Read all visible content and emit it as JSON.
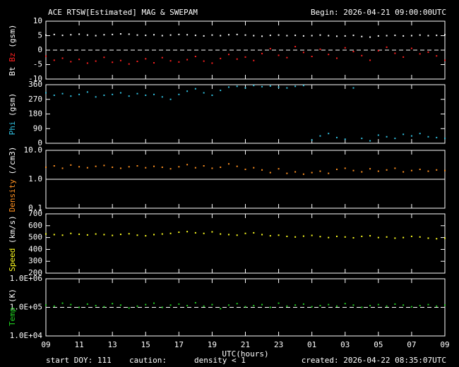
{
  "title": "ACE RTSW[Estimated] MAG & SWEPAM",
  "begin": "Begin: 2026-04-21 09:00:00UTC",
  "footer": {
    "start": "start DOY: 111",
    "caution": "caution:",
    "note": "density < 1",
    "note_color": "#ff9020",
    "created": "created: 2026-04-22 08:35:07UTC"
  },
  "chart_data": [
    {
      "type": "scatter",
      "ylabel": "(gsm)",
      "xlim": [
        0,
        24
      ],
      "ylim": [
        -10,
        10
      ],
      "yticks": [
        -10,
        -5,
        0,
        5,
        10
      ],
      "hline": 0,
      "hline_style": "dashed",
      "x": [
        0,
        0.5,
        1,
        1.5,
        2,
        2.5,
        3,
        3.5,
        4,
        4.5,
        5,
        5.5,
        6,
        6.5,
        7,
        7.5,
        8,
        8.5,
        9,
        9.5,
        10,
        10.5,
        11,
        11.5,
        12,
        12.5,
        13,
        13.5,
        14,
        14.5,
        15,
        15.5,
        16,
        16.5,
        17,
        17.5,
        18,
        18.5,
        19,
        19.5,
        20,
        20.5,
        21,
        21.5,
        22,
        22.5,
        23,
        23.5,
        24
      ],
      "series": [
        {
          "name": "Bt",
          "color": "#ffffff",
          "values": [
            5.2,
            5.4,
            5.1,
            5.3,
            5.5,
            5.2,
            5.0,
            5.3,
            5.4,
            5.6,
            5.5,
            5.2,
            5.1,
            5.3,
            5.0,
            5.2,
            5.4,
            5.3,
            5.1,
            4.9,
            5.2,
            5.0,
            5.3,
            5.4,
            5.2,
            5.0,
            4.8,
            5.1,
            5.2,
            5.0,
            5.1,
            4.9,
            5.0,
            5.2,
            5.0,
            4.8,
            4.9,
            5.1,
            4.7,
            4.5,
            4.9,
            5.0,
            5.1,
            4.9,
            5.0,
            5.2,
            5.0,
            5.1,
            5.3
          ]
        },
        {
          "name": "Bz",
          "color": "#ff2020",
          "values": [
            -2.1,
            -3.5,
            -2.8,
            -4.0,
            -3.2,
            -4.5,
            -3.8,
            -2.5,
            -4.2,
            -3.6,
            -4.8,
            -3.9,
            -3.0,
            -4.4,
            -2.6,
            -3.7,
            -4.1,
            -3.3,
            -2.2,
            -3.8,
            -4.5,
            -2.9,
            -1.5,
            -3.1,
            -2.4,
            -3.6,
            -1.2,
            0.5,
            -1.8,
            -2.6,
            1.2,
            -0.8,
            -2.2,
            0.3,
            -1.5,
            -2.8,
            0.8,
            -0.5,
            -1.9,
            -3.5,
            -0.2,
            1.0,
            -1.1,
            -2.4,
            0.6,
            -1.3,
            -0.7,
            -2.0,
            -3.5
          ]
        }
      ]
    },
    {
      "type": "scatter",
      "ylabel": "(gsm)",
      "xlim": [
        0,
        24
      ],
      "ylim": [
        0,
        360
      ],
      "yticks": [
        0,
        90,
        180,
        270,
        360
      ],
      "x": [
        0,
        0.5,
        1,
        1.5,
        2,
        2.5,
        3,
        3.5,
        4,
        4.5,
        5,
        5.5,
        6,
        6.5,
        7,
        7.5,
        8,
        8.5,
        9,
        9.5,
        10,
        10.5,
        11,
        11.5,
        12,
        12.5,
        13,
        13.5,
        14,
        14.5,
        15,
        15.5,
        16,
        16.5,
        17,
        17.5,
        18,
        18.5,
        19,
        19.5,
        20,
        20.5,
        21,
        21.5,
        22,
        22.5,
        23,
        23.5,
        24
      ],
      "series": [
        {
          "name": "Phi",
          "color": "#30c0e0",
          "values": [
            310,
            295,
            305,
            290,
            300,
            315,
            285,
            295,
            300,
            310,
            290,
            305,
            295,
            300,
            285,
            270,
            300,
            320,
            335,
            310,
            295,
            325,
            345,
            350,
            340,
            355,
            348,
            352,
            345,
            340,
            350,
            355,
            20,
            45,
            60,
            35,
            25,
            340,
            30,
            15,
            50,
            40,
            30,
            55,
            45,
            60,
            40,
            35,
            30
          ]
        }
      ]
    },
    {
      "type": "scatter",
      "ylabel": "(/cm3)",
      "log": true,
      "xlim": [
        0,
        24
      ],
      "ylim": [
        0.1,
        10
      ],
      "yticks": [
        0.1,
        {
          "value": 1,
          "label": "1.0"
        },
        {
          "value": 10,
          "label": "10.0"
        }
      ],
      "hline": 1,
      "hline_style": "solid",
      "x": [
        0,
        0.5,
        1,
        1.5,
        2,
        2.5,
        3,
        3.5,
        4,
        4.5,
        5,
        5.5,
        6,
        6.5,
        7,
        7.5,
        8,
        8.5,
        9,
        9.5,
        10,
        10.5,
        11,
        11.5,
        12,
        12.5,
        13,
        13.5,
        14,
        14.5,
        15,
        15.5,
        16,
        16.5,
        17,
        17.5,
        18,
        18.5,
        19,
        19.5,
        20,
        20.5,
        21,
        21.5,
        22,
        22.5,
        23,
        23.5,
        24
      ],
      "series": [
        {
          "name": "Density",
          "color": "#ff9020",
          "values": [
            2.6,
            2.9,
            2.4,
            3.1,
            2.7,
            2.5,
            2.8,
            3.0,
            2.6,
            2.4,
            2.7,
            2.9,
            2.5,
            2.8,
            2.6,
            2.3,
            2.7,
            3.2,
            2.5,
            2.9,
            2.4,
            2.6,
            3.4,
            2.8,
            2.2,
            2.5,
            2.1,
            1.7,
            2.3,
            1.6,
            1.8,
            1.5,
            1.7,
            1.9,
            1.6,
            2.2,
            2.4,
            2.0,
            1.8,
            2.3,
            1.9,
            2.1,
            2.4,
            1.8,
            2.0,
            2.2,
            1.9,
            2.1,
            2.0
          ]
        }
      ]
    },
    {
      "type": "scatter",
      "ylabel": "(km/s)",
      "xlim": [
        0,
        24
      ],
      "ylim": [
        200,
        700
      ],
      "yticks": [
        200,
        300,
        400,
        500,
        600,
        700
      ],
      "x": [
        0,
        0.5,
        1,
        1.5,
        2,
        2.5,
        3,
        3.5,
        4,
        4.5,
        5,
        5.5,
        6,
        6.5,
        7,
        7.5,
        8,
        8.5,
        9,
        9.5,
        10,
        10.5,
        11,
        11.5,
        12,
        12.5,
        13,
        13.5,
        14,
        14.5,
        15,
        15.5,
        16,
        16.5,
        17,
        17.5,
        18,
        18.5,
        19,
        19.5,
        20,
        20.5,
        21,
        21.5,
        22,
        22.5,
        23,
        23.5,
        24
      ],
      "series": [
        {
          "name": "Speed",
          "color": "#ffff20",
          "values": [
            530,
            525,
            520,
            535,
            528,
            522,
            530,
            525,
            518,
            527,
            532,
            520,
            515,
            525,
            530,
            535,
            545,
            550,
            540,
            535,
            548,
            530,
            525,
            520,
            535,
            540,
            525,
            515,
            520,
            510,
            505,
            512,
            518,
            508,
            500,
            510,
            505,
            498,
            510,
            515,
            500,
            505,
            495,
            500,
            510,
            505,
            495,
            490,
            495
          ]
        }
      ]
    },
    {
      "type": "scatter",
      "ylabel": "(K)",
      "log": true,
      "xlim": [
        0,
        24
      ],
      "ylim": [
        10000,
        1000000
      ],
      "yticks": [
        {
          "value": 10000,
          "label": "1.0E+04"
        },
        {
          "value": 100000,
          "label": "1.0E+05"
        },
        {
          "value": 1000000,
          "label": "1.0E+06"
        }
      ],
      "hline": 100000,
      "hline_style": "dashed",
      "xlabel": "UTC(hours)",
      "xticks": [
        {
          "value": 0,
          "label": "09"
        },
        {
          "value": 2,
          "label": "11"
        },
        {
          "value": 4,
          "label": "13"
        },
        {
          "value": 6,
          "label": "15"
        },
        {
          "value": 8,
          "label": "17"
        },
        {
          "value": 10,
          "label": "19"
        },
        {
          "value": 12,
          "label": "21"
        },
        {
          "value": 14,
          "label": "23"
        },
        {
          "value": 16,
          "label": "01"
        },
        {
          "value": 18,
          "label": "03"
        },
        {
          "value": 20,
          "label": "05"
        },
        {
          "value": 22,
          "label": "07"
        },
        {
          "value": 24,
          "label": "09"
        }
      ],
      "x": [
        0,
        0.5,
        1,
        1.5,
        2,
        2.5,
        3,
        3.5,
        4,
        4.5,
        5,
        5.5,
        6,
        6.5,
        7,
        7.5,
        8,
        8.5,
        9,
        9.5,
        10,
        10.5,
        11,
        11.5,
        12,
        12.5,
        13,
        13.5,
        14,
        14.5,
        15,
        15.5,
        16,
        16.5,
        17,
        17.5,
        18,
        18.5,
        19,
        19.5,
        20,
        20.5,
        21,
        21.5,
        22,
        22.5,
        23,
        23.5,
        24
      ],
      "series": [
        {
          "name": "Temp",
          "color": "#20d020",
          "values": [
            120000,
            110000,
            140000,
            125000,
            100000,
            130000,
            115000,
            105000,
            135000,
            120000,
            95000,
            110000,
            125000,
            140000,
            100000,
            120000,
            130000,
            115000,
            145000,
            110000,
            125000,
            90000,
            120000,
            135000,
            105000,
            115000,
            125000,
            100000,
            140000,
            110000,
            120000,
            130000,
            105000,
            115000,
            125000,
            110000,
            135000,
            120000,
            100000,
            115000,
            125000,
            110000,
            130000,
            120000,
            105000,
            115000,
            125000,
            110000,
            120000
          ]
        }
      ]
    }
  ]
}
